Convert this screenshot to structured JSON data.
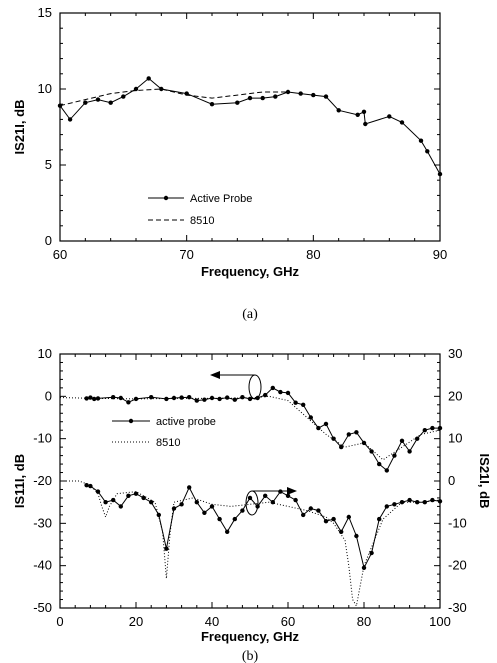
{
  "chart_data": [
    {
      "type": "line",
      "caption": "(a)",
      "xlabel": "Frequency, GHz",
      "ylabel": "IS21I, dB",
      "xlim": [
        60,
        90
      ],
      "ylim": [
        0,
        15
      ],
      "x_ticks": [
        60,
        70,
        80,
        90
      ],
      "y_ticks": [
        0,
        5,
        10,
        15
      ],
      "legend_position": "center-left",
      "series": [
        {
          "name": "Active Probe",
          "style": "solid-with-markers",
          "x": [
            60,
            60.8,
            62,
            63,
            64,
            65,
            66,
            67,
            68,
            70,
            72,
            74,
            75,
            76,
            77,
            78,
            79,
            80,
            81,
            82,
            83.5,
            84,
            84.1,
            86,
            87,
            88.5,
            89,
            90
          ],
          "y": [
            8.9,
            8.0,
            9.1,
            9.3,
            9.1,
            9.5,
            10.0,
            10.7,
            10.0,
            9.7,
            9.0,
            9.1,
            9.4,
            9.4,
            9.5,
            9.8,
            9.7,
            9.6,
            9.5,
            8.6,
            8.3,
            8.5,
            7.7,
            8.2,
            7.8,
            6.6,
            5.9,
            4.4
          ]
        },
        {
          "name": "8510",
          "style": "dashed",
          "x": [
            60,
            62,
            64,
            66,
            68,
            70,
            72,
            74,
            76,
            78
          ],
          "y": [
            8.9,
            9.3,
            9.7,
            9.9,
            10.0,
            9.6,
            9.4,
            9.6,
            9.8,
            9.8
          ]
        }
      ]
    },
    {
      "type": "line",
      "caption": "(b)",
      "xlabel": "Frequency, GHz",
      "ylabel": "IS11I, dB",
      "ylabel_right": "IS21I, dB",
      "xlim": [
        0,
        100
      ],
      "ylim": [
        -50,
        10
      ],
      "ylim_right": [
        -30,
        30
      ],
      "x_ticks": [
        0,
        20,
        40,
        60,
        80,
        100
      ],
      "y_ticks": [
        10,
        0,
        -10,
        -20,
        -30,
        -40,
        -50
      ],
      "y_ticks_right": [
        30,
        20,
        10,
        0,
        -10,
        -20,
        -30
      ],
      "legend_position": "upper-left",
      "series": [
        {
          "name": "active probe",
          "axis": "left",
          "style": "solid-with-markers",
          "x": [
            7,
            8,
            9,
            10,
            14,
            16,
            18,
            20,
            24,
            28,
            30,
            32,
            34,
            36,
            38,
            40,
            42,
            44,
            46,
            48,
            50,
            52,
            54,
            56,
            58,
            60,
            62,
            64,
            66,
            68,
            70,
            72,
            74,
            76,
            78,
            80,
            82,
            84,
            86,
            88,
            90,
            92,
            94,
            96,
            98,
            100
          ],
          "y": [
            -0.5,
            -0.3,
            -0.6,
            -0.5,
            -0.2,
            -0.4,
            -1.4,
            -0.6,
            -0.2,
            -0.6,
            -0.4,
            -0.3,
            -0.2,
            -1.0,
            -0.8,
            -0.4,
            -0.6,
            -0.3,
            -0.8,
            -0.2,
            -0.6,
            -0.4,
            0.3,
            2.0,
            1.0,
            0.8,
            -1.5,
            -2.0,
            -5.0,
            -7.5,
            -6.5,
            -10.0,
            -12.0,
            -9.0,
            -8.5,
            -11.0,
            -13.0,
            -16.0,
            -17.5,
            -14.0,
            -10.5,
            -13.0,
            -10.0,
            -8.0,
            -7.5,
            -7.5
          ]
        },
        {
          "name": "8510",
          "axis": "left",
          "style": "dotted",
          "x": [
            0,
            5,
            10,
            20,
            30,
            40,
            50,
            55,
            60,
            65,
            70,
            75,
            80,
            85,
            90,
            95,
            100
          ],
          "y": [
            -0.3,
            -0.4,
            -0.5,
            -0.6,
            -0.5,
            -0.5,
            -0.4,
            0,
            -1.0,
            -5.0,
            -9.0,
            -12.0,
            -11.0,
            -15.0,
            -12.0,
            -9.0,
            -8.0
          ]
        },
        {
          "name": "active probe",
          "axis": "right",
          "style": "solid-with-markers",
          "x": [
            7,
            8,
            10,
            12,
            14,
            16,
            18,
            20,
            22,
            24,
            26,
            28,
            30,
            32,
            34,
            36,
            38,
            40,
            42,
            44,
            46,
            48,
            50,
            52,
            54,
            56,
            58,
            60,
            62,
            64,
            66,
            68,
            70,
            72,
            74,
            76,
            78,
            80,
            82,
            84,
            86,
            88,
            90,
            92,
            94,
            96,
            98,
            100
          ],
          "y": [
            -1.0,
            -1.2,
            -2.5,
            -5.0,
            -4.5,
            -6.0,
            -3.5,
            -3.0,
            -4.0,
            -5.0,
            -8.0,
            -16.0,
            -6.5,
            -5.5,
            -1.5,
            -5.0,
            -7.5,
            -6.0,
            -9.0,
            -12.0,
            -9.0,
            -7.0,
            -4.0,
            -6.0,
            -3.5,
            -5.0,
            -2.5,
            -3.5,
            -4.5,
            -8.0,
            -6.5,
            -7.0,
            -9.5,
            -9.0,
            -12.0,
            -8.5,
            -13.0,
            -20.5,
            -17.0,
            -9.0,
            -6.0,
            -5.5,
            -5.0,
            -4.5,
            -5.0,
            -5.0,
            -4.5,
            -4.8
          ]
        },
        {
          "name": "8510",
          "axis": "right",
          "style": "dotted",
          "x": [
            0,
            5,
            8,
            10,
            11,
            12,
            13,
            15,
            20,
            25,
            27,
            28,
            29,
            30,
            35,
            40,
            45,
            50,
            55,
            60,
            65,
            70,
            72,
            75,
            76,
            77,
            78,
            80,
            85,
            90,
            95,
            100
          ],
          "y": [
            0,
            0,
            -1.0,
            -3.0,
            -6.0,
            -8.5,
            -6.0,
            -3.0,
            -2.5,
            -5.0,
            -12.0,
            -23.0,
            -12.0,
            -5.0,
            -4.0,
            -5.5,
            -6.0,
            -5.5,
            -5.0,
            -6.0,
            -7.0,
            -8.5,
            -10.0,
            -14.0,
            -20.0,
            -28.0,
            -29.5,
            -20.0,
            -9.0,
            -5.0,
            -5.0,
            -4.5
          ]
        }
      ]
    }
  ]
}
